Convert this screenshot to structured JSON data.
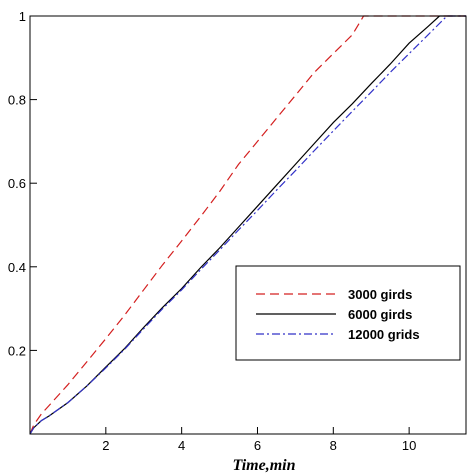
{
  "chart_data": {
    "type": "line",
    "title": "",
    "xlabel": "Time,min",
    "ylabel": "",
    "xlim": [
      0,
      11.5
    ],
    "ylim": [
      0,
      1
    ],
    "x_ticks": [
      2,
      4,
      6,
      8,
      10
    ],
    "y_ticks": [
      0.2,
      0.4,
      0.6,
      0.8,
      1
    ],
    "y_tick_labels": [
      "0.2",
      "0.4",
      "0.6",
      "0.8",
      "1"
    ],
    "grid": false,
    "legend_position": "lower-right",
    "series": [
      {
        "name": "3000 girds",
        "color": "#d42020",
        "dash": "dashed",
        "x": [
          0,
          0.1,
          0.3,
          0.5,
          1.0,
          1.5,
          2.0,
          2.5,
          3.0,
          3.5,
          4.0,
          4.5,
          5.0,
          5.5,
          6.0,
          6.5,
          7.0,
          7.5,
          8.0,
          8.5,
          8.8,
          9.5,
          11.5
        ],
        "y": [
          0,
          0.022,
          0.048,
          0.068,
          0.118,
          0.173,
          0.228,
          0.285,
          0.345,
          0.405,
          0.462,
          0.52,
          0.58,
          0.645,
          0.7,
          0.755,
          0.81,
          0.865,
          0.91,
          0.955,
          1.0,
          1.0,
          1.0
        ]
      },
      {
        "name": "6000 girds",
        "color": "#000000",
        "dash": "solid",
        "x": [
          0,
          0.1,
          0.3,
          0.5,
          1.0,
          1.5,
          2.0,
          2.5,
          3.0,
          3.5,
          4.0,
          4.5,
          5.0,
          5.5,
          6.0,
          6.5,
          7.0,
          7.5,
          8.0,
          8.5,
          9.0,
          9.5,
          10.0,
          10.5,
          10.8,
          11.5
        ],
        "y": [
          0,
          0.015,
          0.032,
          0.043,
          0.075,
          0.115,
          0.16,
          0.205,
          0.255,
          0.303,
          0.348,
          0.398,
          0.445,
          0.495,
          0.545,
          0.595,
          0.645,
          0.695,
          0.745,
          0.79,
          0.838,
          0.885,
          0.935,
          0.975,
          1.0,
          1.0
        ]
      },
      {
        "name": "12000 grids",
        "color": "#3232c8",
        "dash": "dashdot",
        "x": [
          0,
          0.1,
          0.3,
          0.5,
          1.0,
          1.5,
          2.0,
          2.5,
          3.0,
          3.5,
          4.0,
          4.5,
          5.0,
          5.5,
          6.0,
          6.5,
          7.0,
          7.5,
          8.0,
          8.5,
          9.0,
          9.5,
          10.0,
          10.5,
          11.0,
          11.5
        ],
        "y": [
          0,
          0.015,
          0.032,
          0.043,
          0.075,
          0.115,
          0.158,
          0.203,
          0.252,
          0.3,
          0.345,
          0.393,
          0.44,
          0.488,
          0.535,
          0.583,
          0.63,
          0.678,
          0.725,
          0.772,
          0.818,
          0.865,
          0.91,
          0.955,
          1.0,
          1.0
        ]
      }
    ]
  }
}
